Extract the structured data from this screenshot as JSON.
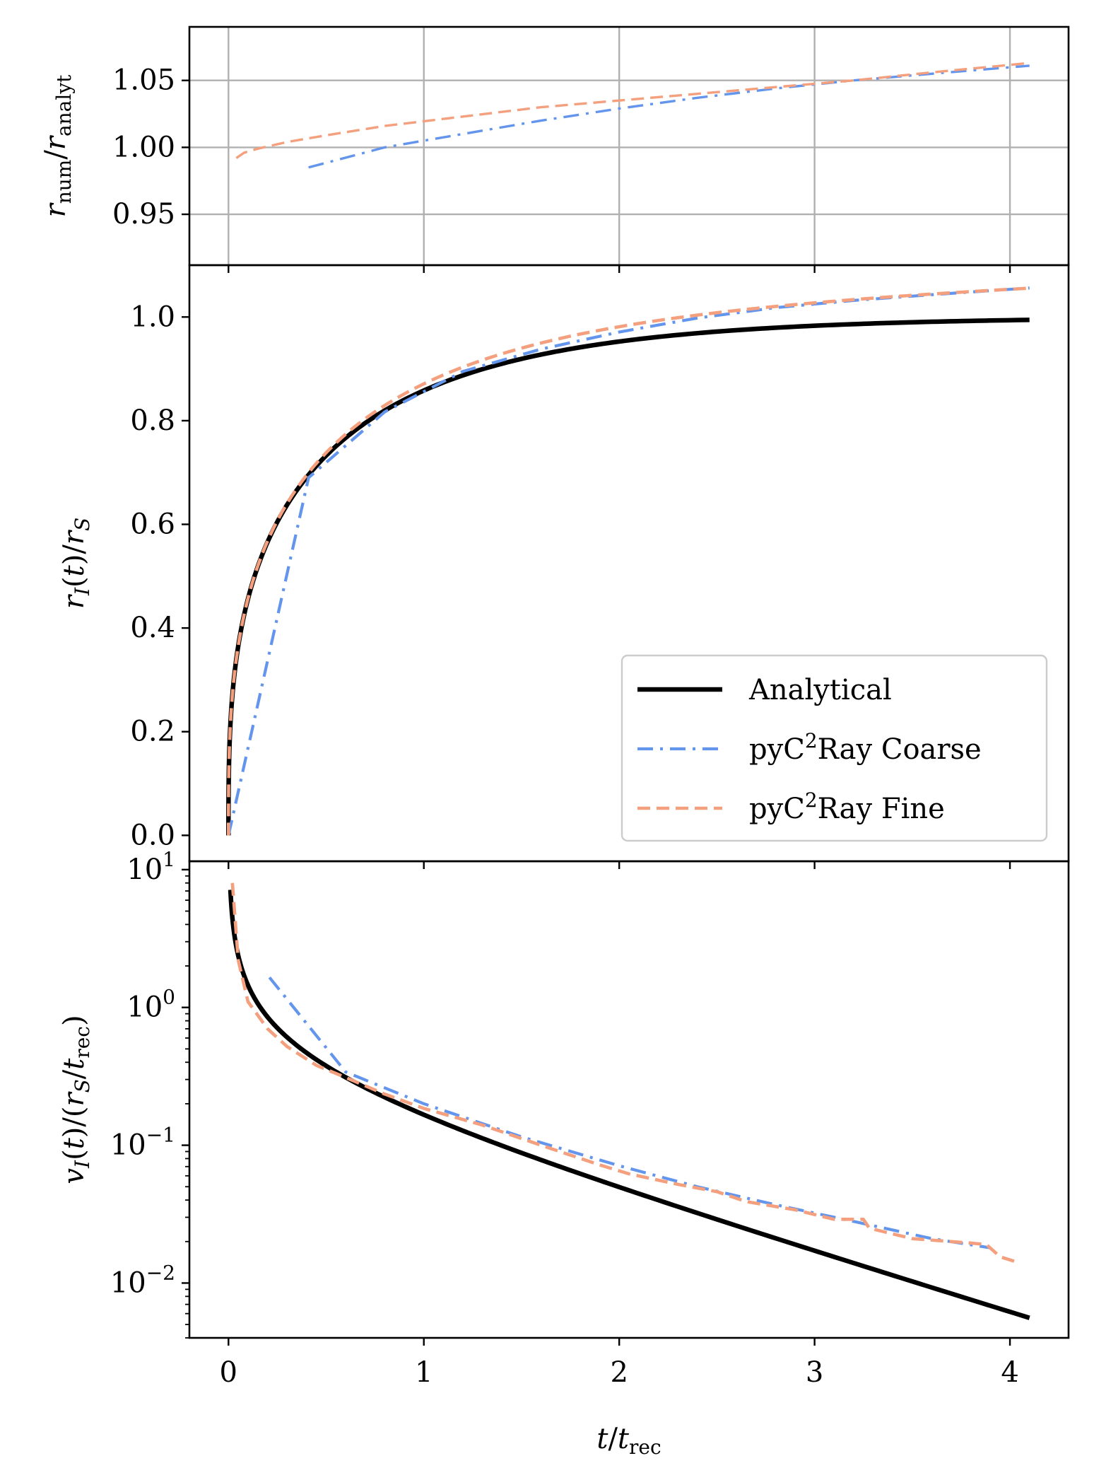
{
  "figure": {
    "xlabel": "t/t_rec",
    "colors": {
      "analytical": "#000000",
      "coarse": "#6495ED",
      "fine": "#F4A07E",
      "grid": "#b0b0b0",
      "axes": "#000000"
    },
    "xlim": [
      -0.2,
      4.3
    ],
    "xticks": [
      0,
      1,
      2,
      3,
      4
    ],
    "xtick_labels": [
      "0",
      "1",
      "2",
      "3",
      "4"
    ]
  },
  "chart_data": [
    {
      "type": "line",
      "panel": "ratio",
      "ylabel": "r_num/r_analyt",
      "ylim": [
        0.912,
        1.09
      ],
      "yscale": "linear",
      "grid": true,
      "yticks": [
        0.95,
        1.0,
        1.05
      ],
      "ytick_labels": [
        "0.95",
        "1.00",
        "1.05"
      ],
      "series": [
        {
          "name": "pyC²Ray Coarse",
          "style": "dashdot",
          "color": "#6495ED",
          "x": [
            0.41,
            0.8,
            1.2,
            1.6,
            2.0,
            2.4,
            2.8,
            3.2,
            3.6,
            4.1
          ],
          "y": [
            0.985,
            1.0,
            1.01,
            1.02,
            1.029,
            1.037,
            1.044,
            1.05,
            1.055,
            1.061
          ]
        },
        {
          "name": "pyC²Ray Fine",
          "style": "dashed",
          "color": "#F4A07E",
          "x": [
            0.04,
            0.08,
            0.15,
            0.3,
            0.5,
            0.8,
            1.2,
            1.6,
            2.0,
            2.4,
            2.8,
            3.2,
            3.6,
            4.1
          ],
          "y": [
            0.992,
            0.996,
            0.999,
            1.004,
            1.009,
            1.016,
            1.023,
            1.03,
            1.035,
            1.04,
            1.045,
            1.05,
            1.056,
            1.063
          ]
        }
      ]
    },
    {
      "type": "line",
      "panel": "radius",
      "ylabel": "r_I(t)/r_S",
      "ylim": [
        -0.05,
        1.1
      ],
      "yscale": "linear",
      "grid": false,
      "yticks": [
        0.0,
        0.2,
        0.4,
        0.6,
        0.8,
        1.0
      ],
      "ytick_labels": [
        "0.0",
        "0.2",
        "0.4",
        "0.6",
        "0.8",
        "1.0"
      ],
      "legend": {
        "location": "lower-right",
        "entries": [
          {
            "label": "Analytical",
            "series": "Analytical"
          },
          {
            "label": "pyC²Ray Coarse",
            "series": "pyC²Ray Coarse"
          },
          {
            "label": "pyC²Ray Fine",
            "series": "pyC²Ray Fine"
          }
        ]
      },
      "series": [
        {
          "name": "Analytical",
          "style": "solid",
          "color": "#000000",
          "function": "analytic_radius",
          "x_range": [
            0.0,
            4.1
          ]
        },
        {
          "name": "pyC²Ray Coarse",
          "style": "dashdot",
          "color": "#6495ED",
          "x": [
            0.0,
            0.41,
            0.8,
            1.2,
            1.6,
            2.0,
            2.4,
            2.8,
            3.2,
            3.6,
            4.1
          ],
          "y": [
            0.0,
            0.69,
            0.817,
            0.895,
            0.938,
            0.971,
            0.998,
            1.018,
            1.032,
            1.043,
            1.056
          ]
        },
        {
          "name": "pyC²Ray Fine",
          "style": "dashed",
          "color": "#F4A07E",
          "function": "fine_radius",
          "x_range": [
            0.0,
            4.1
          ]
        }
      ]
    },
    {
      "type": "line",
      "panel": "velocity",
      "ylabel": "v_I(t)/(r_S/t_rec)",
      "ylim": [
        0.004,
        11.5
      ],
      "yscale": "log",
      "grid": false,
      "yticks": [
        0.01,
        0.1,
        1,
        10
      ],
      "ytick_labels": [
        {
          "base": "10",
          "exp": "−2"
        },
        {
          "base": "10",
          "exp": "−1"
        },
        {
          "base": "10",
          "exp": "0"
        },
        {
          "base": "10",
          "exp": "1"
        }
      ],
      "series": [
        {
          "name": "Analytical",
          "style": "solid",
          "color": "#000000",
          "function": "analytic_velocity",
          "x_range": [
            0.01,
            4.1
          ]
        },
        {
          "name": "pyC²Ray Coarse",
          "style": "dashdot",
          "color": "#6495ED",
          "x": [
            0.21,
            0.6,
            1.0,
            1.5,
            2.0,
            2.4,
            2.8,
            3.2,
            3.6,
            3.9
          ],
          "y": [
            1.65,
            0.34,
            0.2,
            0.115,
            0.071,
            0.05,
            0.037,
            0.028,
            0.021,
            0.018
          ]
        },
        {
          "name": "pyC²Ray Fine",
          "style": "dashed",
          "color": "#F4A07E",
          "x": [
            0.02,
            0.05,
            0.1,
            0.2,
            0.3,
            0.45,
            0.6,
            0.8,
            1.0,
            1.3,
            1.6,
            1.9,
            2.05,
            2.3,
            2.5,
            2.65,
            2.9,
            3.1,
            3.25,
            3.28,
            3.5,
            3.8,
            3.88,
            3.95,
            4.05
          ],
          "y": [
            8.0,
            2.2,
            1.1,
            0.7,
            0.52,
            0.38,
            0.31,
            0.235,
            0.185,
            0.14,
            0.1,
            0.072,
            0.062,
            0.052,
            0.046,
            0.039,
            0.034,
            0.029,
            0.029,
            0.025,
            0.021,
            0.0195,
            0.019,
            0.0155,
            0.014
          ]
        }
      ]
    }
  ]
}
